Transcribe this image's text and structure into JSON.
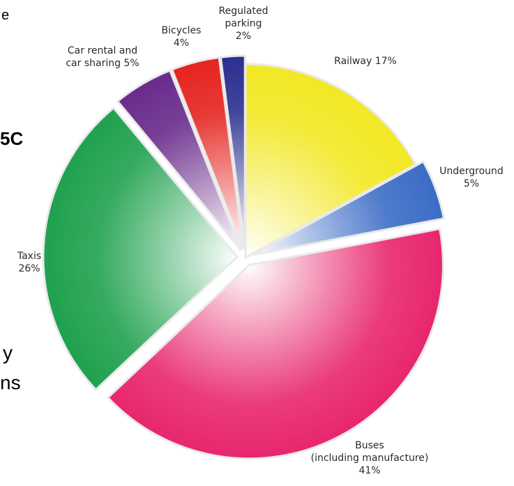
{
  "chart_data": {
    "type": "pie",
    "title": "",
    "slices": [
      {
        "label_lines": [
          "Railway 17%"
        ],
        "value": 17,
        "color": "#f2e824",
        "exploded": false
      },
      {
        "label_lines": [
          "Underground",
          "5%"
        ],
        "value": 5,
        "color": "#3b6cc6",
        "exploded": true
      },
      {
        "label_lines": [
          "Buses",
          "(including manufacture)",
          "41%"
        ],
        "value": 41,
        "color": "#e8266d",
        "exploded": true
      },
      {
        "label_lines": [
          "Taxis",
          "26%"
        ],
        "value": 26,
        "color": "#1fa14e",
        "exploded": true
      },
      {
        "label_lines": [
          "Car rental and",
          "car sharing 5%"
        ],
        "value": 5,
        "color": "#6a2b8c",
        "exploded": true
      },
      {
        "label_lines": [
          "Bicycles",
          "4%"
        ],
        "value": 4,
        "color": "#e52420",
        "exploded": true
      },
      {
        "label_lines": [
          "Regulated",
          "parking",
          "2%"
        ],
        "value": 2,
        "color": "#2b2f8f",
        "exploded": true
      }
    ]
  },
  "cut_off_text": {
    "fragment_e": "e",
    "fragment_50": "5C",
    "fragment_y": "y",
    "fragment_ns": "ns"
  }
}
